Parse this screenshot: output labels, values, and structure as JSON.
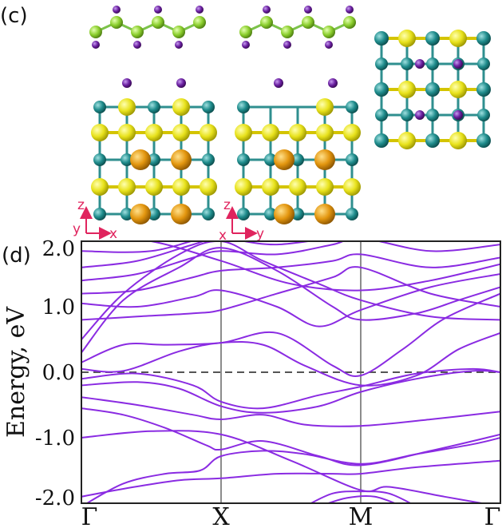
{
  "figure": {
    "panel_c_label": "(c)",
    "panel_d_label": "(d)",
    "colors": {
      "band": "#8a2be2",
      "atom_yellow": "#e8e21c",
      "atom_teal": "#1f8c8c",
      "atom_orange": "#e3960f",
      "atom_purple": "#6a1fa0",
      "atom_green": "#8ccf2e",
      "axis_arrow": "#e0245e"
    },
    "axes_gizmo_left": {
      "vertical": "z",
      "depth": "y",
      "horizontal": "x"
    },
    "axes_gizmo_right": {
      "vertical": "z",
      "depth": "x",
      "horizontal": "y"
    }
  },
  "chart_data": {
    "type": "line",
    "ylabel": "Energy, eV",
    "ylim": [
      -2.0,
      2.0
    ],
    "yticks": [
      "2.0",
      "1.0",
      "0.0",
      "-1.0",
      "-2.0"
    ],
    "ytick_values": [
      2.0,
      1.0,
      0.0,
      -1.0,
      -2.0
    ],
    "kpoints": [
      "Γ",
      "X",
      "M",
      "Γ"
    ],
    "kpoint_positions": [
      0,
      1,
      2,
      3
    ],
    "fermi_level": 0.0,
    "bands": [
      [
        [
          0,
          -2.05
        ],
        [
          0.3,
          -1.7
        ],
        [
          0.6,
          -1.55
        ],
        [
          0.85,
          -1.5
        ],
        [
          1,
          -1.28
        ],
        [
          1.3,
          -1.2
        ],
        [
          1.6,
          -1.25
        ],
        [
          2,
          -1.4
        ],
        [
          2.4,
          -1.25
        ],
        [
          2.8,
          -1.1
        ],
        [
          3,
          -1.0
        ]
      ],
      [
        [
          0,
          -1.9
        ],
        [
          0.3,
          -1.78
        ],
        [
          0.7,
          -1.65
        ],
        [
          1,
          -1.62
        ],
        [
          1.4,
          -1.55
        ],
        [
          1.8,
          -1.55
        ],
        [
          2,
          -1.55
        ],
        [
          2.4,
          -1.45
        ],
        [
          3,
          -1.35
        ]
      ],
      [
        [
          0,
          -0.55
        ],
        [
          0.3,
          -0.65
        ],
        [
          0.6,
          -0.85
        ],
        [
          0.9,
          -1.12
        ],
        [
          1,
          -1.18
        ],
        [
          1.3,
          -1.05
        ],
        [
          1.7,
          -1.28
        ],
        [
          2,
          -1.42
        ],
        [
          2.5,
          -1.2
        ],
        [
          3,
          -0.95
        ]
      ],
      [
        [
          0,
          -0.38
        ],
        [
          0.4,
          -0.5
        ],
        [
          0.8,
          -0.65
        ],
        [
          1,
          -0.72
        ],
        [
          1.3,
          -0.65
        ],
        [
          1.6,
          -0.8
        ],
        [
          2,
          -0.82
        ],
        [
          2.5,
          -0.72
        ],
        [
          3,
          -0.6
        ]
      ],
      [
        [
          0,
          -0.2
        ],
        [
          0.4,
          -0.15
        ],
        [
          0.7,
          -0.25
        ],
        [
          1,
          -0.52
        ],
        [
          1.3,
          -0.62
        ],
        [
          1.7,
          -0.52
        ],
        [
          2,
          -0.3
        ],
        [
          2.4,
          -0.1
        ],
        [
          2.8,
          0.02
        ],
        [
          3,
          0.0
        ]
      ],
      [
        [
          0,
          -0.1
        ],
        [
          0.4,
          -0.02
        ],
        [
          0.8,
          -0.2
        ],
        [
          1,
          -0.45
        ],
        [
          1.3,
          -0.55
        ],
        [
          1.7,
          -0.35
        ],
        [
          2,
          -0.22
        ],
        [
          2.4,
          -0.02
        ],
        [
          2.8,
          0.05
        ],
        [
          3,
          0.0
        ]
      ],
      [
        [
          0,
          0.05
        ],
        [
          0.3,
          0.02
        ],
        [
          0.7,
          0.32
        ],
        [
          1,
          0.45
        ],
        [
          1.3,
          0.42
        ],
        [
          1.6,
          0.1
        ],
        [
          2,
          -0.2
        ],
        [
          2.4,
          -0.05
        ],
        [
          2.7,
          0.35
        ],
        [
          3,
          0.6
        ]
      ],
      [
        [
          0,
          0.15
        ],
        [
          0.3,
          0.42
        ],
        [
          0.6,
          0.42
        ],
        [
          1,
          0.45
        ],
        [
          1.4,
          0.6
        ],
        [
          1.8,
          0.1
        ],
        [
          2,
          -0.05
        ],
        [
          2.3,
          0.35
        ],
        [
          2.6,
          0.82
        ],
        [
          3,
          1.2
        ]
      ],
      [
        [
          0,
          0.3
        ],
        [
          0.3,
          1.1
        ],
        [
          0.7,
          1.6
        ],
        [
          1,
          1.9
        ],
        [
          1.4,
          1.55
        ],
        [
          1.8,
          1.0
        ],
        [
          2,
          0.8
        ],
        [
          2.4,
          0.9
        ],
        [
          2.7,
          1.1
        ],
        [
          3,
          1.3
        ]
      ],
      [
        [
          0,
          0.5
        ],
        [
          0.3,
          1.2
        ],
        [
          0.7,
          1.8
        ],
        [
          1,
          2.0
        ],
        [
          1.3,
          1.7
        ],
        [
          1.7,
          1.35
        ],
        [
          2,
          1.1
        ],
        [
          2.5,
          0.85
        ],
        [
          3,
          0.8
        ]
      ],
      [
        [
          0,
          0.8
        ],
        [
          0.4,
          0.85
        ],
        [
          0.8,
          0.9
        ],
        [
          1,
          0.95
        ],
        [
          1.4,
          1.2
        ],
        [
          1.8,
          1.45
        ],
        [
          2,
          1.6
        ],
        [
          2.5,
          1.2
        ],
        [
          3,
          1.0
        ]
      ],
      [
        [
          0,
          1.05
        ],
        [
          0.4,
          1.0
        ],
        [
          0.8,
          1.15
        ],
        [
          1,
          1.25
        ],
        [
          1.4,
          1.0
        ],
        [
          1.7,
          0.7
        ],
        [
          2,
          0.95
        ],
        [
          2.5,
          1.3
        ],
        [
          3,
          1.5
        ]
      ],
      [
        [
          0,
          1.2
        ],
        [
          0.4,
          1.25
        ],
        [
          0.8,
          1.45
        ],
        [
          1,
          1.55
        ],
        [
          1.4,
          1.6
        ],
        [
          1.8,
          1.7
        ],
        [
          2,
          1.8
        ],
        [
          2.5,
          1.6
        ],
        [
          3,
          1.75
        ]
      ],
      [
        [
          0,
          1.4
        ],
        [
          0.4,
          1.5
        ],
        [
          0.8,
          1.75
        ],
        [
          1,
          1.85
        ],
        [
          1.4,
          1.8
        ],
        [
          1.8,
          1.95
        ],
        [
          2,
          2.05
        ],
        [
          2.5,
          1.85
        ],
        [
          3,
          1.95
        ]
      ],
      [
        [
          0,
          1.6
        ],
        [
          0.4,
          1.7
        ],
        [
          0.8,
          1.95
        ],
        [
          1,
          2.05
        ],
        [
          1.4,
          1.95
        ],
        [
          2,
          2.1
        ],
        [
          2.5,
          2.05
        ],
        [
          3,
          2.1
        ]
      ],
      [
        [
          0,
          1.85
        ],
        [
          0.5,
          1.85
        ],
        [
          1,
          2.1
        ],
        [
          1.5,
          2.05
        ],
        [
          2,
          2.15
        ],
        [
          2.5,
          2.1
        ],
        [
          3,
          2.15
        ]
      ],
      [
        [
          0,
          2.1
        ],
        [
          0.5,
          2.0
        ],
        [
          1,
          1.7
        ],
        [
          1.5,
          1.35
        ],
        [
          2,
          1.25
        ],
        [
          2.5,
          1.4
        ],
        [
          3,
          1.65
        ]
      ],
      [
        [
          0,
          -1.0
        ],
        [
          0.5,
          -0.9
        ],
        [
          1,
          -0.95
        ],
        [
          1.5,
          -1.35
        ],
        [
          2,
          -1.8
        ],
        [
          2.2,
          -1.75
        ],
        [
          2.6,
          -1.9
        ],
        [
          3,
          -2.05
        ]
      ],
      [
        [
          1.6,
          -2.05
        ],
        [
          1.8,
          -1.85
        ],
        [
          2,
          -1.82
        ],
        [
          2.2,
          -1.85
        ],
        [
          2.4,
          -2.05
        ]
      ],
      [
        [
          1.7,
          -2.05
        ],
        [
          1.9,
          -1.92
        ],
        [
          2.1,
          -1.9
        ],
        [
          2.3,
          -2.05
        ]
      ]
    ]
  }
}
